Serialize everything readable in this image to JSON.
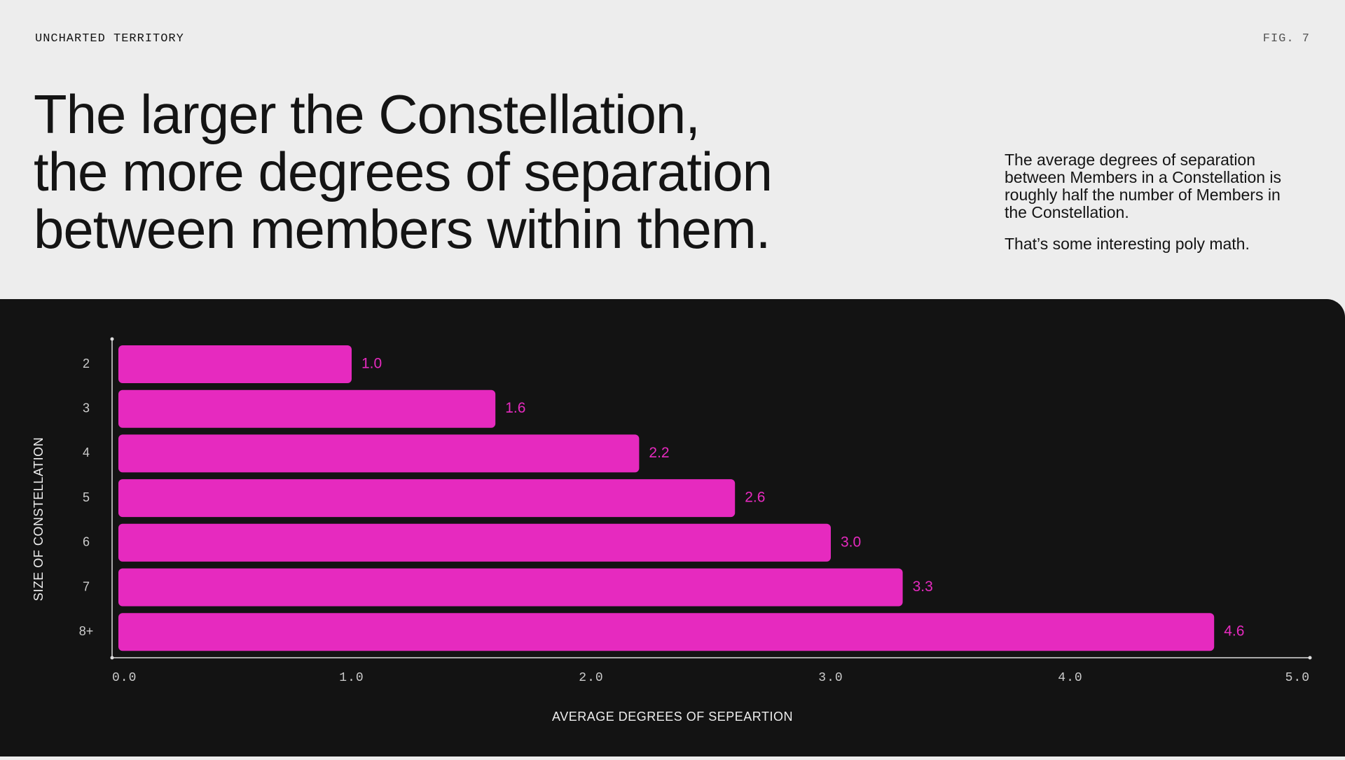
{
  "header": {
    "eyebrow": "UNCHARTED TERRITORY",
    "figure": "FIG. 7"
  },
  "headline": [
    "The larger the Constellation,",
    "the more degrees of separation",
    "between members within them."
  ],
  "description": [
    "The average degrees of separation between Members in a Constellation is roughly half the number of Members in the Constellation.",
    "That’s some interesting poly math."
  ],
  "chart_data": {
    "type": "hbar",
    "categories": [
      "2",
      "3",
      "4",
      "5",
      "6",
      "7",
      "8+"
    ],
    "values": [
      1.0,
      1.6,
      2.2,
      2.6,
      3.0,
      3.3,
      4.6
    ],
    "value_labels": [
      "1.0",
      "1.6",
      "2.2",
      "2.6",
      "3.0",
      "3.3",
      "4.6"
    ],
    "color": "#e62abf",
    "xlim": [
      0,
      5
    ],
    "xticks": [
      {
        "value": 0,
        "label": "0.0"
      },
      {
        "value": 1,
        "label": "1.0"
      },
      {
        "value": 2,
        "label": "2.0"
      },
      {
        "value": 3,
        "label": "3.0"
      },
      {
        "value": 4,
        "label": "4.0"
      },
      {
        "value": 5,
        "label": "5.0"
      }
    ],
    "xlabel": "AVERAGE DEGREES OF SEPEARTION",
    "ylabel": "SIZE OF CONSTELLATION"
  }
}
